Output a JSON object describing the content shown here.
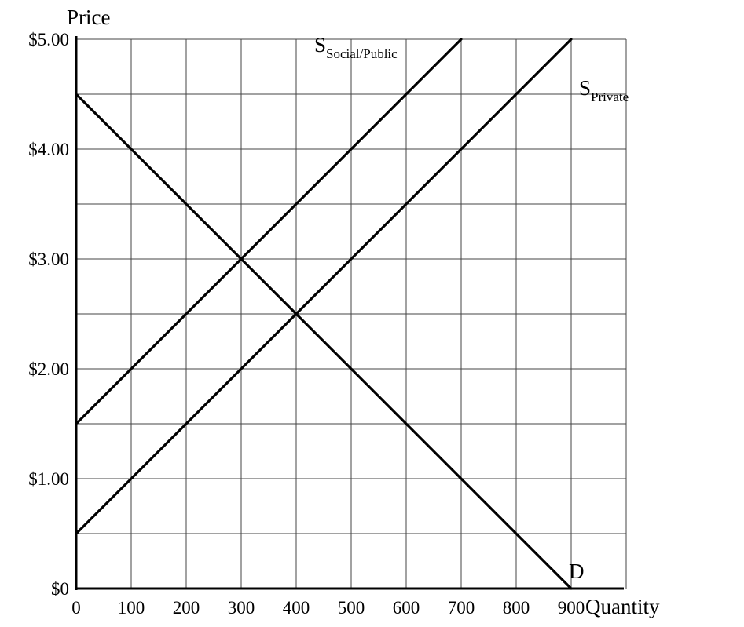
{
  "chart_data": {
    "type": "line",
    "title": "",
    "xlabel": "Quantity",
    "ylabel": "Price",
    "xlim": [
      0,
      1000
    ],
    "ylim": [
      0,
      5
    ],
    "grid": true,
    "x_ticks": [
      0,
      100,
      200,
      300,
      400,
      500,
      600,
      700,
      800,
      900
    ],
    "x_tick_labels": [
      "0",
      "100",
      "200",
      "300",
      "400",
      "500",
      "600",
      "700",
      "800",
      "900"
    ],
    "y_tick_values": [
      0,
      1,
      2,
      3,
      4,
      5
    ],
    "y_tick_labels": [
      "$0",
      "$1.00",
      "$2.00",
      "$3.00",
      "$4.00",
      "$5.00"
    ],
    "series": [
      {
        "label_main": "S",
        "label_sub": "Social/Public",
        "points": [
          [
            0,
            1.5
          ],
          [
            700,
            5.0
          ]
        ]
      },
      {
        "label_main": "S",
        "label_sub": "Private",
        "points": [
          [
            0,
            0.5
          ],
          [
            900,
            5.0
          ]
        ]
      },
      {
        "label_main": "D",
        "label_sub": "",
        "points": [
          [
            0,
            4.5
          ],
          [
            900,
            0
          ]
        ]
      }
    ]
  }
}
